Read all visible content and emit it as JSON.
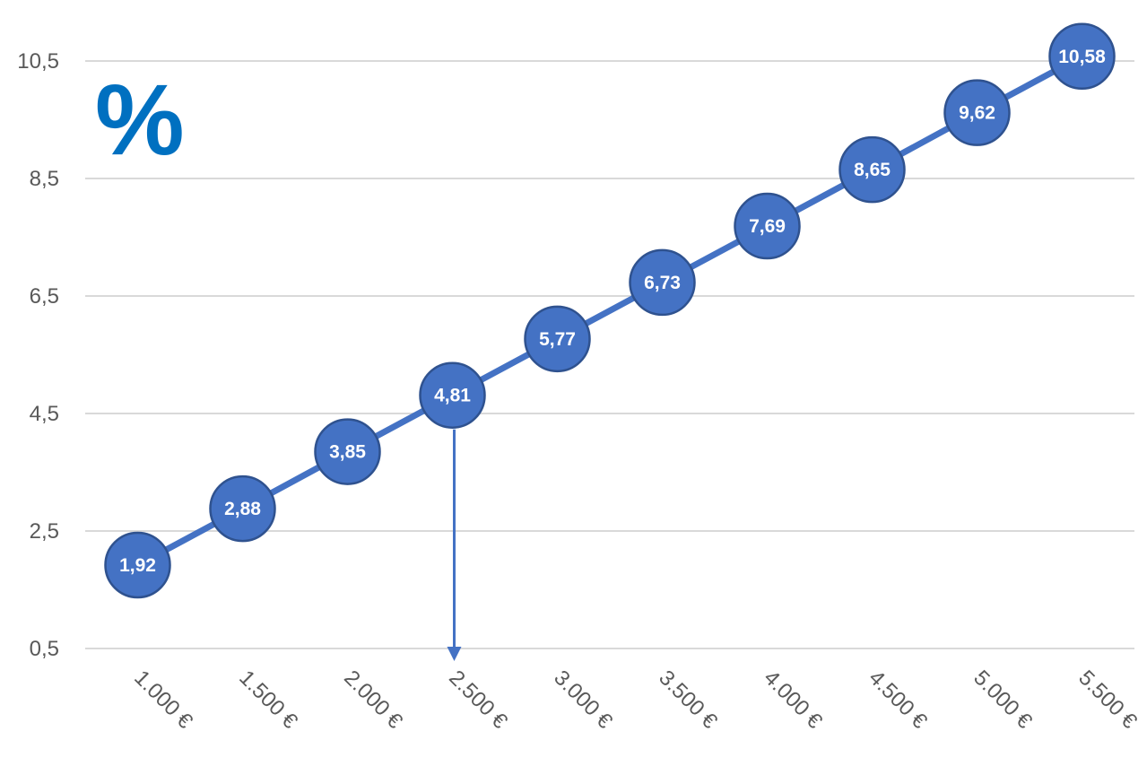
{
  "chart_data": {
    "type": "line",
    "categories": [
      "1.000 €",
      "1.500 €",
      "2.000 €",
      "2.500 €",
      "3.000 €",
      "3.500 €",
      "4.000 €",
      "4.500 €",
      "5.000 €",
      "5.500 €"
    ],
    "series": [
      {
        "values": [
          1.92,
          2.88,
          3.85,
          4.81,
          5.77,
          6.73,
          7.69,
          8.65,
          9.62,
          10.58
        ],
        "data_labels": [
          "1,92",
          "2,88",
          "3,85",
          "4,81",
          "5,77",
          "6,73",
          "7,69",
          "8,65",
          "9,62",
          "10,58"
        ]
      }
    ],
    "y_ticks": [
      0.5,
      2.5,
      4.5,
      6.5,
      8.5,
      10.5
    ],
    "y_tick_labels": [
      "0,5",
      "2,5",
      "4,5",
      "6,5",
      "8,5",
      "10,5"
    ],
    "ylim": [
      0.5,
      10.5
    ],
    "grid": true,
    "legend": "none",
    "annotation_symbol": "%",
    "arrow_category_index": 3,
    "colors": {
      "series": "#4472c4",
      "marker_border": "#2f528f",
      "symbol": "#0070c0",
      "grid": "#d9d9d9",
      "tick_text": "#595959"
    }
  }
}
